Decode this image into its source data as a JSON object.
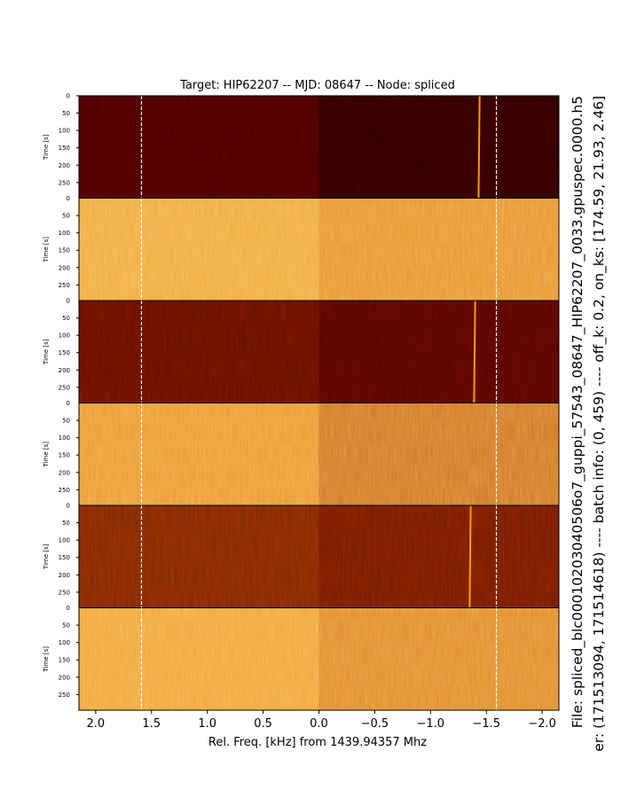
{
  "chart_data": {
    "type": "heatmap",
    "title": "Target: HIP62207 -- MJD: 08647 -- Node: spliced",
    "xlabel": "Rel. Freq. [kHz] from 1439.94357 Mhz",
    "ylabel": "Time [s]",
    "side_text_1": "File: spliced_blc00010203040506o7_guppi_57543_08647_HIP62207_0033.gpuspec.0000.h5",
    "side_text_2": "er: (171513094, 171514618) ---- batch info: (0, 459) ---- off_k: 0.2, on_ks: [174.59, 21.93, 2.46]",
    "xlim": [
      2.15,
      -2.15
    ],
    "ylim": [
      0,
      295
    ],
    "x_ticks": [
      2.0,
      1.5,
      1.0,
      0.5,
      0.0,
      -0.5,
      -1.0,
      -1.5,
      -2.0
    ],
    "x_tick_labels": [
      "2.0",
      "1.5",
      "1.0",
      "0.5",
      "0.0",
      "−0.5",
      "−1.0",
      "−1.5",
      "−2.0"
    ],
    "y_ticks_first": [
      0,
      50,
      100,
      150,
      200,
      250
    ],
    "y_ticks_other": [
      50,
      100,
      150,
      200,
      250
    ],
    "panel_top_labels": [
      "0",
      "0",
      "0",
      "0",
      "0"
    ],
    "boundary_lines_khz": [
      1.59,
      -1.59
    ],
    "colormap": "afmhot",
    "panels": [
      {
        "index": 1,
        "mean_intensity": 0.18,
        "signal": {
          "x_start_khz": -1.44,
          "x_end_khz": -1.43
        }
      },
      {
        "index": 2,
        "mean_intensity": 0.72,
        "signal": null
      },
      {
        "index": 3,
        "mean_intensity": 0.3,
        "signal": {
          "x_start_khz": -1.4,
          "x_end_khz": -1.39
        }
      },
      {
        "index": 4,
        "mean_intensity": 0.66,
        "signal": null
      },
      {
        "index": 5,
        "mean_intensity": 0.45,
        "signal": {
          "x_start_khz": -1.36,
          "x_end_khz": -1.35
        }
      },
      {
        "index": 6,
        "mean_intensity": 0.7,
        "signal": null
      }
    ],
    "colors": {
      "dark_maroon": "#5e0000",
      "dark_red": "#8a1a00",
      "mid_brown": "#a83a05",
      "orange": "#f0a030",
      "light_orange": "#f7b545",
      "signal": "#ff9a00"
    }
  }
}
